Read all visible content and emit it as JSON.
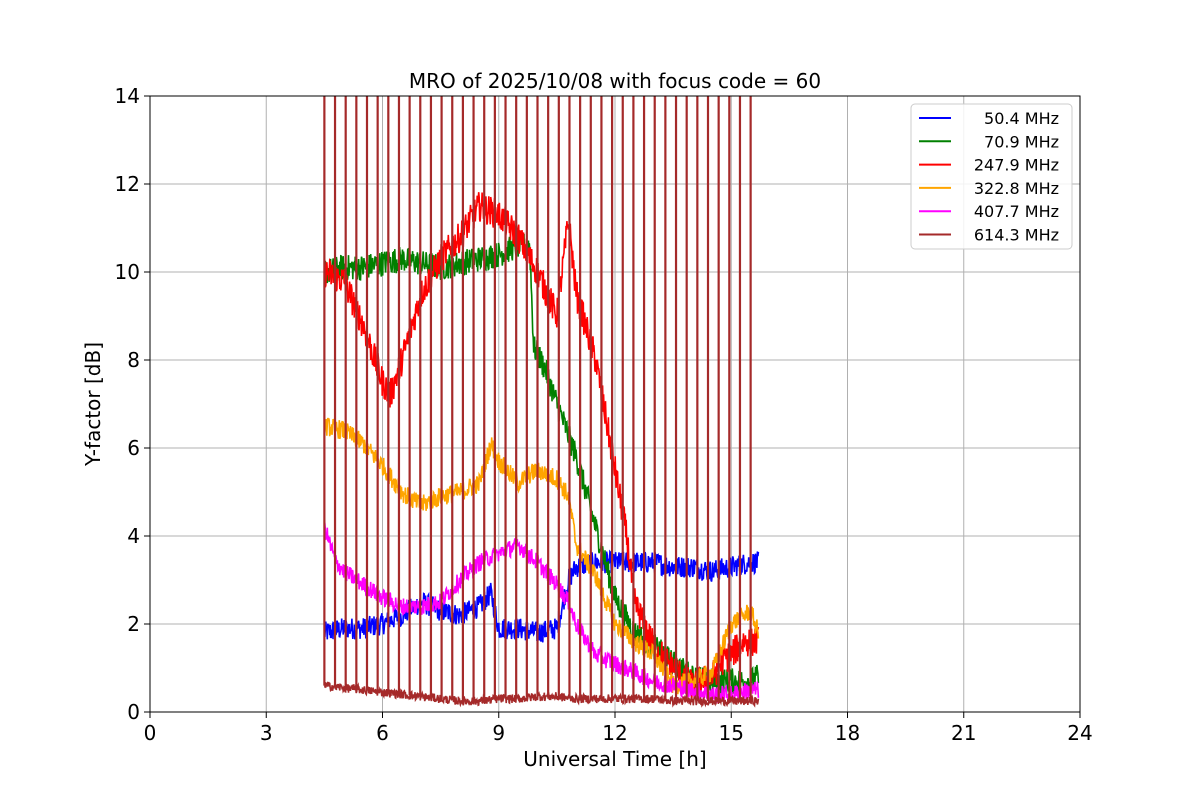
{
  "chart_data": {
    "type": "line",
    "title": "MRO of 2025/10/08 with focus code = 60",
    "xlabel": "Universal Time [h]",
    "ylabel": "Y-factor [dB]",
    "xlim": [
      0,
      24
    ],
    "ylim": [
      0,
      14
    ],
    "xticks": [
      0,
      3,
      6,
      9,
      12,
      15,
      18,
      21,
      24
    ],
    "yticks": [
      0,
      2,
      4,
      6,
      8,
      10,
      12,
      14
    ],
    "grid": true,
    "legend_position": "top-right",
    "series": [
      {
        "name": "50.4 MHz",
        "color": "#0000ff",
        "noise": 0.25,
        "points": [
          [
            4.5,
            1.8
          ],
          [
            5.0,
            1.9
          ],
          [
            5.5,
            1.9
          ],
          [
            6.0,
            2.0
          ],
          [
            6.5,
            2.2
          ],
          [
            7.0,
            2.5
          ],
          [
            7.5,
            2.3
          ],
          [
            8.0,
            2.2
          ],
          [
            8.5,
            2.4
          ],
          [
            8.8,
            2.7
          ],
          [
            9.0,
            1.9
          ],
          [
            9.5,
            1.9
          ],
          [
            10.0,
            1.8
          ],
          [
            10.5,
            1.9
          ],
          [
            10.8,
            3.0
          ],
          [
            11.0,
            3.3
          ],
          [
            11.5,
            3.4
          ],
          [
            12.0,
            3.4
          ],
          [
            12.5,
            3.4
          ],
          [
            13.0,
            3.4
          ],
          [
            13.5,
            3.3
          ],
          [
            14.0,
            3.3
          ],
          [
            14.5,
            3.2
          ],
          [
            15.0,
            3.3
          ],
          [
            15.5,
            3.4
          ],
          [
            15.7,
            3.4
          ]
        ]
      },
      {
        "name": "70.9 MHz",
        "color": "#008000",
        "noise": 0.3,
        "points": [
          [
            4.5,
            10.0
          ],
          [
            5.0,
            10.1
          ],
          [
            5.5,
            10.1
          ],
          [
            6.0,
            10.2
          ],
          [
            6.5,
            10.3
          ],
          [
            7.0,
            10.2
          ],
          [
            7.5,
            10.1
          ],
          [
            8.0,
            10.2
          ],
          [
            8.5,
            10.3
          ],
          [
            9.0,
            10.4
          ],
          [
            9.5,
            10.6
          ],
          [
            9.8,
            10.6
          ],
          [
            9.9,
            8.3
          ],
          [
            10.2,
            7.8
          ],
          [
            10.5,
            7.0
          ],
          [
            11.0,
            5.8
          ],
          [
            11.5,
            4.2
          ],
          [
            12.0,
            2.6
          ],
          [
            12.5,
            1.8
          ],
          [
            13.0,
            1.5
          ],
          [
            13.5,
            1.1
          ],
          [
            14.0,
            0.8
          ],
          [
            14.5,
            0.7
          ],
          [
            15.0,
            0.7
          ],
          [
            15.5,
            0.7
          ],
          [
            15.7,
            0.8
          ]
        ]
      },
      {
        "name": "247.9 MHz",
        "color": "#ff0000",
        "noise": 0.35,
        "points": [
          [
            4.5,
            10.0
          ],
          [
            5.0,
            9.8
          ],
          [
            5.3,
            9.2
          ],
          [
            5.5,
            8.8
          ],
          [
            6.0,
            7.5
          ],
          [
            6.2,
            7.2
          ],
          [
            6.5,
            8.0
          ],
          [
            7.0,
            9.5
          ],
          [
            7.5,
            10.3
          ],
          [
            8.0,
            10.8
          ],
          [
            8.5,
            11.5
          ],
          [
            9.0,
            11.3
          ],
          [
            9.5,
            10.8
          ],
          [
            10.0,
            10.0
          ],
          [
            10.5,
            9.0
          ],
          [
            10.8,
            11.2
          ],
          [
            11.0,
            9.5
          ],
          [
            11.5,
            8.0
          ],
          [
            12.0,
            5.5
          ],
          [
            12.3,
            4.0
          ],
          [
            12.5,
            2.5
          ],
          [
            13.0,
            1.5
          ],
          [
            13.5,
            1.0
          ],
          [
            14.0,
            0.6
          ],
          [
            14.5,
            0.8
          ],
          [
            14.8,
            1.2
          ],
          [
            15.0,
            1.3
          ],
          [
            15.3,
            1.6
          ],
          [
            15.7,
            1.6
          ]
        ]
      },
      {
        "name": "322.8 MHz",
        "color": "#ffa500",
        "noise": 0.22,
        "points": [
          [
            4.5,
            6.5
          ],
          [
            5.0,
            6.4
          ],
          [
            5.5,
            6.1
          ],
          [
            6.0,
            5.6
          ],
          [
            6.5,
            5.0
          ],
          [
            6.8,
            4.8
          ],
          [
            7.0,
            4.7
          ],
          [
            7.5,
            4.9
          ],
          [
            8.0,
            5.0
          ],
          [
            8.5,
            5.2
          ],
          [
            8.8,
            6.1
          ],
          [
            9.0,
            5.7
          ],
          [
            9.5,
            5.2
          ],
          [
            9.8,
            5.4
          ],
          [
            10.0,
            5.5
          ],
          [
            10.5,
            5.3
          ],
          [
            10.8,
            4.9
          ],
          [
            11.0,
            3.8
          ],
          [
            11.5,
            3.1
          ],
          [
            12.0,
            2.0
          ],
          [
            12.5,
            1.6
          ],
          [
            13.0,
            1.3
          ],
          [
            13.5,
            0.6
          ],
          [
            14.0,
            0.7
          ],
          [
            14.5,
            0.9
          ],
          [
            15.0,
            2.0
          ],
          [
            15.5,
            2.3
          ],
          [
            15.7,
            1.8
          ]
        ]
      },
      {
        "name": "407.7 MHz",
        "color": "#ff00ff",
        "noise": 0.2,
        "points": [
          [
            4.5,
            4.2
          ],
          [
            4.8,
            3.4
          ],
          [
            5.0,
            3.2
          ],
          [
            5.5,
            2.9
          ],
          [
            6.0,
            2.6
          ],
          [
            6.5,
            2.4
          ],
          [
            7.0,
            2.4
          ],
          [
            7.5,
            2.5
          ],
          [
            8.0,
            3.0
          ],
          [
            8.5,
            3.4
          ],
          [
            9.0,
            3.6
          ],
          [
            9.5,
            3.8
          ],
          [
            10.0,
            3.4
          ],
          [
            10.5,
            2.9
          ],
          [
            10.8,
            2.5
          ],
          [
            11.0,
            2.0
          ],
          [
            11.5,
            1.3
          ],
          [
            12.0,
            1.1
          ],
          [
            12.5,
            0.9
          ],
          [
            13.0,
            0.7
          ],
          [
            13.5,
            0.6
          ],
          [
            14.0,
            0.5
          ],
          [
            14.5,
            0.4
          ],
          [
            15.0,
            0.4
          ],
          [
            15.5,
            0.5
          ],
          [
            15.7,
            0.5
          ]
        ]
      },
      {
        "name": "614.3 MHz",
        "color": "#a52a2a",
        "noise": 0.1,
        "spikes": true,
        "spike_top": 14,
        "spike_start": 4.5,
        "spike_end": 15.5,
        "spike_count": 41,
        "points": [
          [
            4.5,
            0.6
          ],
          [
            5.0,
            0.55
          ],
          [
            5.5,
            0.5
          ],
          [
            6.0,
            0.45
          ],
          [
            6.5,
            0.4
          ],
          [
            7.0,
            0.35
          ],
          [
            7.5,
            0.3
          ],
          [
            8.0,
            0.25
          ],
          [
            8.5,
            0.25
          ],
          [
            9.0,
            0.3
          ],
          [
            9.5,
            0.3
          ],
          [
            10.0,
            0.35
          ],
          [
            10.5,
            0.35
          ],
          [
            11.0,
            0.3
          ],
          [
            11.5,
            0.3
          ],
          [
            12.0,
            0.3
          ],
          [
            12.5,
            0.3
          ],
          [
            13.0,
            0.3
          ],
          [
            13.5,
            0.25
          ],
          [
            14.0,
            0.25
          ],
          [
            14.5,
            0.25
          ],
          [
            15.0,
            0.25
          ],
          [
            15.5,
            0.25
          ],
          [
            15.7,
            0.25
          ]
        ]
      }
    ]
  }
}
